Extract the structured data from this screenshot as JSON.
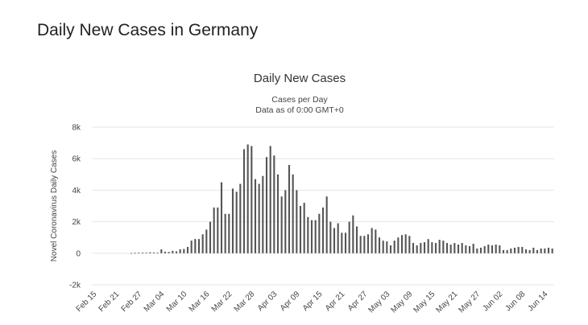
{
  "page": {
    "heading": "Daily New Cases in Germany"
  },
  "chart_data": {
    "type": "bar",
    "title": "Daily New Cases",
    "subtitle_lines": [
      "Cases per Day",
      "Data as of 0:00 GMT+0"
    ],
    "ylabel": "Novel Coronavirus Daily Cases",
    "xlabel": "",
    "ylim": [
      -2000,
      8000
    ],
    "grid": true,
    "yticks": [
      -2000,
      0,
      2000,
      4000,
      6000,
      8000
    ],
    "ytick_labels": [
      "-2k",
      "0",
      "2k",
      "4k",
      "6k",
      "8k"
    ],
    "categories": [
      "Feb 15",
      "Feb 16",
      "Feb 17",
      "Feb 18",
      "Feb 19",
      "Feb 20",
      "Feb 21",
      "Feb 22",
      "Feb 23",
      "Feb 24",
      "Feb 25",
      "Feb 26",
      "Feb 27",
      "Feb 28",
      "Feb 29",
      "Mar 01",
      "Mar 02",
      "Mar 03",
      "Mar 04",
      "Mar 05",
      "Mar 06",
      "Mar 07",
      "Mar 08",
      "Mar 09",
      "Mar 10",
      "Mar 11",
      "Mar 12",
      "Mar 13",
      "Mar 14",
      "Mar 15",
      "Mar 16",
      "Mar 17",
      "Mar 18",
      "Mar 19",
      "Mar 20",
      "Mar 21",
      "Mar 22",
      "Mar 23",
      "Mar 24",
      "Mar 25",
      "Mar 26",
      "Mar 27",
      "Mar 28",
      "Mar 29",
      "Mar 30",
      "Mar 31",
      "Apr 01",
      "Apr 02",
      "Apr 03",
      "Apr 04",
      "Apr 05",
      "Apr 06",
      "Apr 07",
      "Apr 08",
      "Apr 09",
      "Apr 10",
      "Apr 11",
      "Apr 12",
      "Apr 13",
      "Apr 14",
      "Apr 15",
      "Apr 16",
      "Apr 17",
      "Apr 18",
      "Apr 19",
      "Apr 20",
      "Apr 21",
      "Apr 22",
      "Apr 23",
      "Apr 24",
      "Apr 25",
      "Apr 26",
      "Apr 27",
      "Apr 28",
      "Apr 29",
      "Apr 30",
      "May 01",
      "May 02",
      "May 03",
      "May 04",
      "May 05",
      "May 06",
      "May 07",
      "May 08",
      "May 09",
      "May 10",
      "May 11",
      "May 12",
      "May 13",
      "May 14",
      "May 15",
      "May 16",
      "May 17",
      "May 18",
      "May 19",
      "May 20",
      "May 21",
      "May 22",
      "May 23",
      "May 24",
      "May 25",
      "May 26",
      "May 27",
      "May 28",
      "May 29",
      "May 30",
      "May 31",
      "Jun 01",
      "Jun 02",
      "Jun 03",
      "Jun 04",
      "Jun 05",
      "Jun 06",
      "Jun 07",
      "Jun 08",
      "Jun 09",
      "Jun 10",
      "Jun 11",
      "Jun 12",
      "Jun 13",
      "Jun 14",
      "Jun 15",
      "Jun 16"
    ],
    "xtick_labels": [
      "Feb 15",
      "Feb 21",
      "Feb 27",
      "Mar 04",
      "Mar 10",
      "Mar 16",
      "Mar 22",
      "Mar 28",
      "Apr 03",
      "Apr 09",
      "Apr 15",
      "Apr 21",
      "Apr 27",
      "May 03",
      "May 09",
      "May 15",
      "May 21",
      "May 27",
      "Jun 02",
      "Jun 08",
      "Jun 14"
    ],
    "series": [
      {
        "name": "Daily New Cases",
        "color": "#555555",
        "values": [
          0,
          0,
          0,
          0,
          0,
          0,
          0,
          0,
          0,
          0,
          10,
          20,
          30,
          40,
          40,
          60,
          50,
          40,
          250,
          100,
          80,
          150,
          120,
          250,
          270,
          400,
          800,
          900,
          900,
          1200,
          1500,
          2000,
          2900,
          2900,
          4500,
          2500,
          2500,
          4100,
          3900,
          4400,
          6600,
          6900,
          6800,
          4700,
          4400,
          4900,
          6100,
          6800,
          6200,
          5000,
          3600,
          4000,
          5600,
          5000,
          4000,
          3000,
          3200,
          2300,
          2100,
          2100,
          2500,
          2900,
          3600,
          2000,
          1600,
          1900,
          1300,
          1300,
          2000,
          2400,
          1700,
          1100,
          1100,
          1200,
          1600,
          1500,
          1000,
          800,
          750,
          500,
          800,
          1000,
          1150,
          1200,
          1100,
          650,
          500,
          650,
          700,
          900,
          700,
          650,
          850,
          800,
          650,
          550,
          650,
          550,
          650,
          500,
          450,
          600,
          300,
          350,
          450,
          550,
          500,
          550,
          500,
          200,
          200,
          300,
          350,
          400,
          400,
          250,
          200,
          350,
          200,
          300,
          300,
          350,
          300
        ]
      }
    ]
  }
}
